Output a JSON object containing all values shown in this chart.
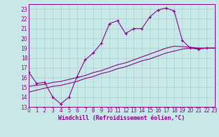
{
  "background_color": "#c8e8e8",
  "grid_color": "#a8cccc",
  "line_color": "#880088",
  "xlim": [
    0,
    23
  ],
  "ylim": [
    13,
    23.5
  ],
  "xlabel": "Windchill (Refroidissement éolien,°C)",
  "xlabel_fontsize": 6,
  "tick_fontsize": 5.5,
  "line1_x": [
    0,
    1,
    2,
    3,
    4,
    5,
    6,
    7,
    8,
    9,
    10,
    11,
    12,
    13,
    14,
    15,
    16,
    17,
    18,
    19,
    20,
    21,
    22,
    23
  ],
  "line1_y": [
    16.6,
    15.4,
    15.5,
    14.0,
    13.3,
    14.0,
    16.1,
    17.8,
    18.5,
    19.5,
    21.5,
    21.8,
    20.5,
    21.0,
    21.0,
    22.2,
    22.9,
    23.1,
    22.8,
    19.8,
    19.0,
    18.9,
    19.0,
    19.0
  ],
  "line2_x": [
    0,
    1,
    2,
    3,
    4,
    5,
    6,
    7,
    8,
    9,
    10,
    11,
    12,
    13,
    14,
    15,
    16,
    17,
    18,
    20,
    21,
    22,
    23
  ],
  "line2_y": [
    15.1,
    15.2,
    15.3,
    15.5,
    15.6,
    15.8,
    16.0,
    16.2,
    16.5,
    16.7,
    17.0,
    17.3,
    17.5,
    17.8,
    18.1,
    18.4,
    18.7,
    19.0,
    19.2,
    19.1,
    19.0,
    19.0,
    19.0
  ],
  "line3_x": [
    0,
    1,
    2,
    3,
    4,
    5,
    6,
    7,
    8,
    9,
    10,
    11,
    12,
    13,
    14,
    15,
    16,
    17,
    18,
    19,
    20,
    21,
    22,
    23
  ],
  "line3_y": [
    14.5,
    14.7,
    14.9,
    15.1,
    15.2,
    15.4,
    15.6,
    15.9,
    16.1,
    16.4,
    16.6,
    16.9,
    17.1,
    17.4,
    17.7,
    17.9,
    18.2,
    18.5,
    18.7,
    18.9,
    19.0,
    19.0,
    19.0,
    19.0
  ]
}
